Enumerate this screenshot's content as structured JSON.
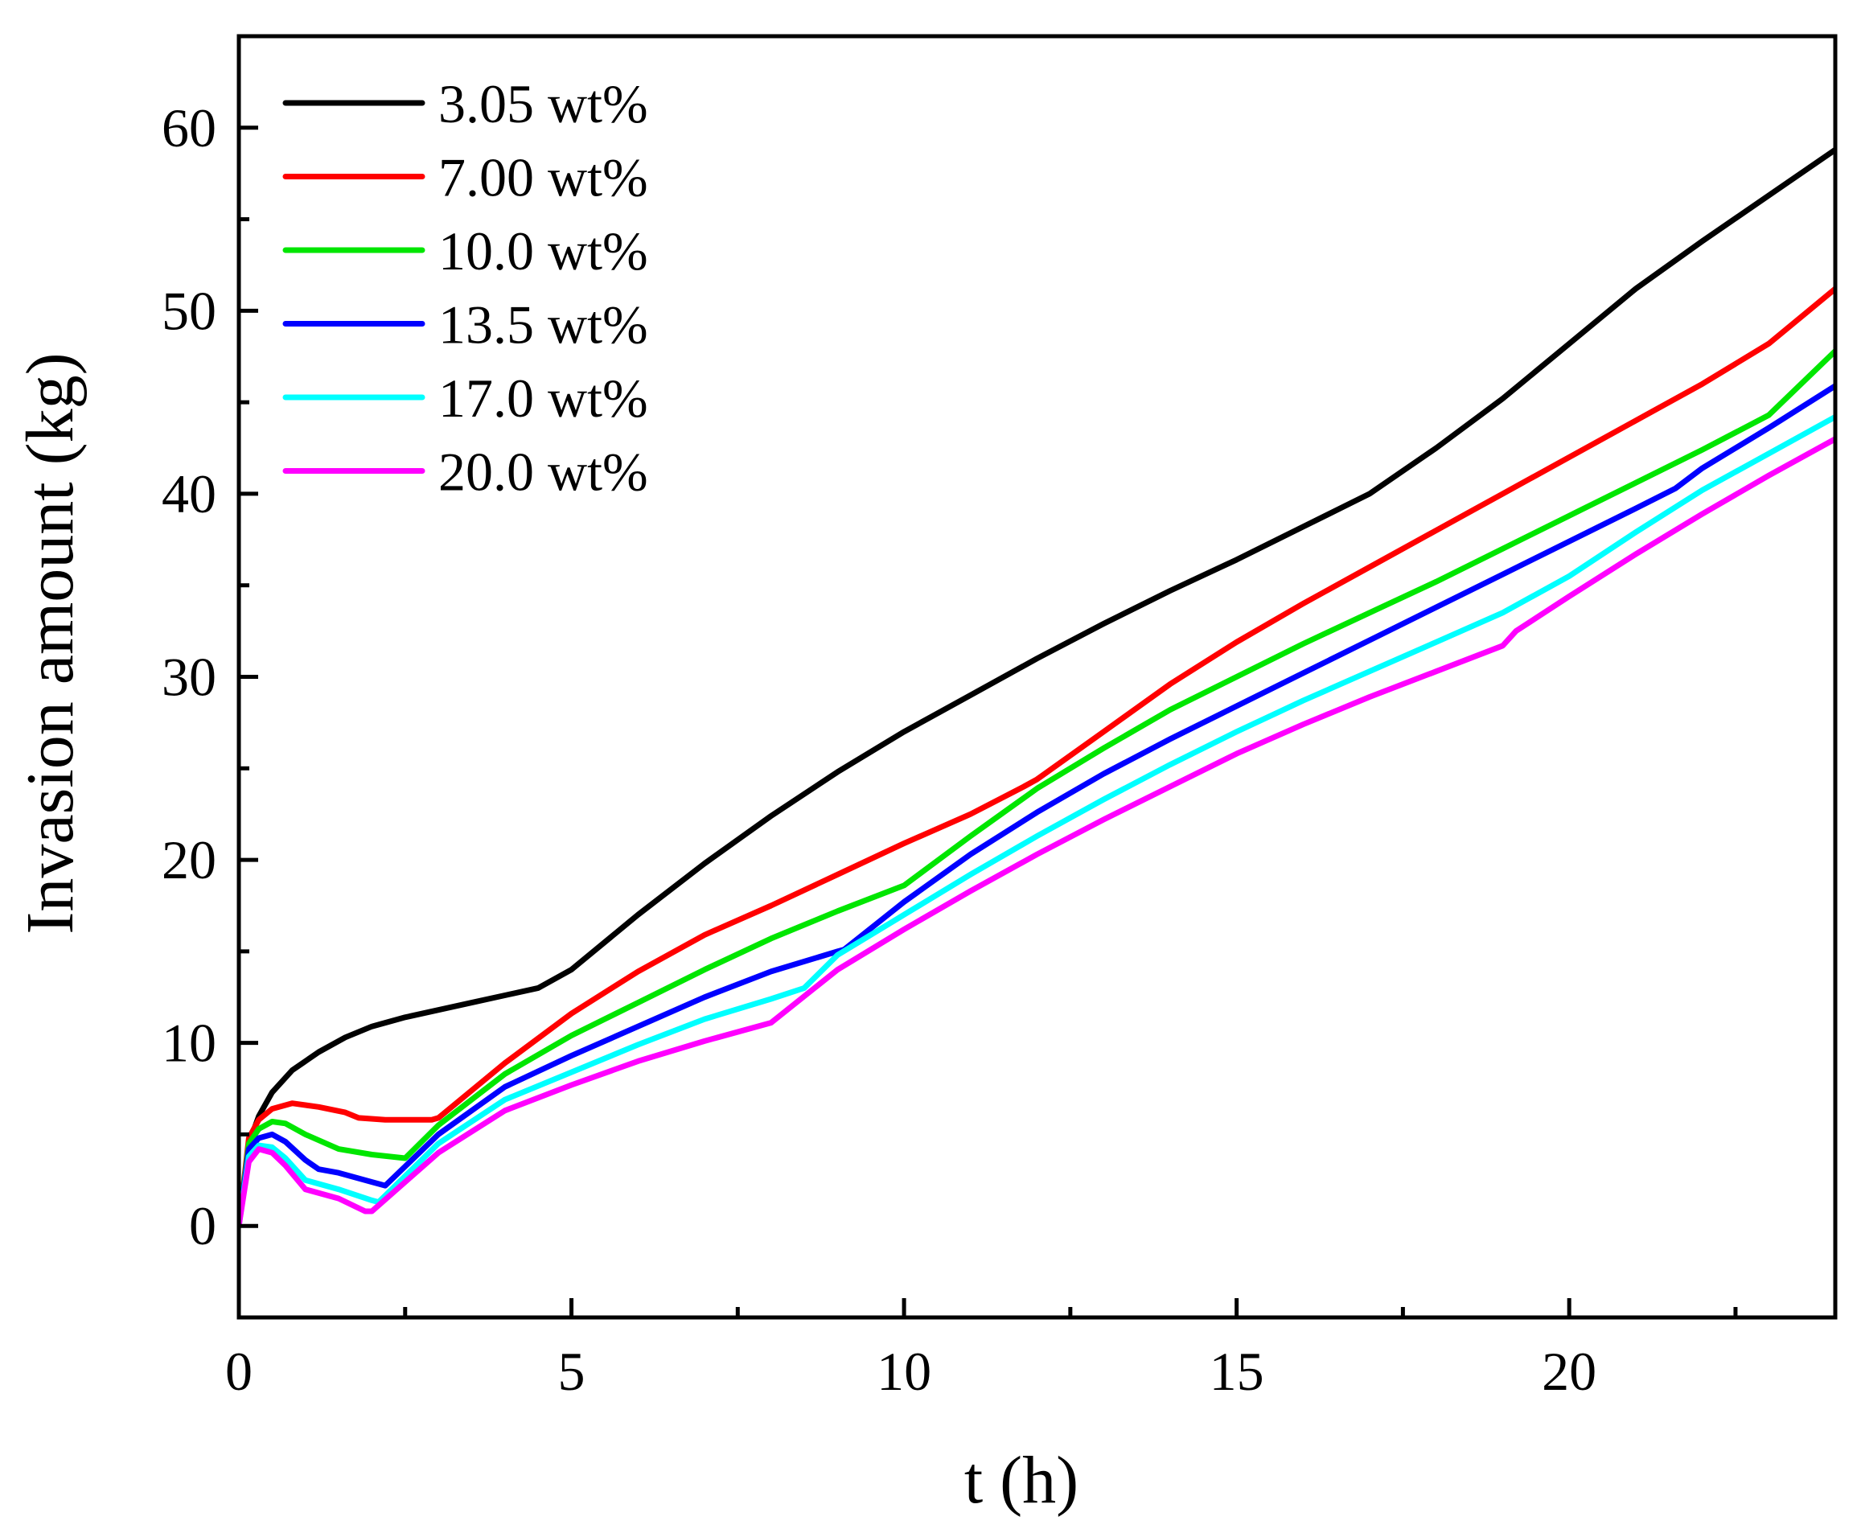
{
  "chart_data": {
    "type": "line",
    "title": "",
    "xlabel": "t (h)",
    "ylabel": "Invasion amount (kg)",
    "xlim": [
      0,
      24
    ],
    "ylim": [
      -5,
      65
    ],
    "xticks": [
      0,
      5,
      10,
      15,
      20
    ],
    "yticks": [
      0,
      10,
      20,
      30,
      40,
      50,
      60
    ],
    "xtick_labels": [
      "0",
      "5",
      "10",
      "15",
      "20"
    ],
    "ytick_labels": [
      "0",
      "10",
      "20",
      "30",
      "40",
      "50",
      "60"
    ],
    "legend_position": "top-left",
    "grid": false,
    "series": [
      {
        "name": "3.05 wt%",
        "color": "#000000",
        "x": [
          0,
          0.15,
          0.3,
          0.5,
          0.8,
          1.2,
          1.6,
          2.0,
          2.5,
          3.0,
          3.5,
          4.0,
          4.5,
          5.0,
          6.0,
          7.0,
          8.0,
          9.0,
          10.0,
          11.0,
          12.0,
          13.0,
          14.0,
          15.0,
          16.0,
          17.0,
          18.0,
          19.0,
          20.0,
          21.0,
          22.0,
          23.0,
          24.0
        ],
        "y": [
          0,
          4.5,
          6.0,
          7.3,
          8.5,
          9.5,
          10.3,
          10.9,
          11.4,
          11.8,
          12.2,
          12.6,
          13.0,
          14.0,
          17.0,
          19.8,
          22.4,
          24.8,
          27.0,
          29.0,
          31.0,
          32.9,
          34.7,
          36.4,
          38.2,
          40.0,
          42.5,
          45.2,
          48.2,
          51.2,
          53.8,
          56.3,
          58.8
        ]
      },
      {
        "name": "7.00 wt%",
        "color": "#ff0000",
        "x": [
          0,
          0.15,
          0.3,
          0.5,
          0.8,
          1.2,
          1.6,
          1.8,
          2.2,
          2.6,
          2.9,
          3.0,
          4.0,
          5.0,
          6.0,
          7.0,
          8.0,
          9.0,
          10.0,
          11.0,
          11.8,
          12.0,
          13.0,
          14.0,
          15.0,
          16.0,
          17.0,
          18.0,
          19.0,
          20.0,
          21.0,
          22.0,
          23.0,
          24.0
        ],
        "y": [
          0,
          4.8,
          5.8,
          6.4,
          6.7,
          6.5,
          6.2,
          5.9,
          5.8,
          5.8,
          5.8,
          5.9,
          8.9,
          11.6,
          13.9,
          15.9,
          17.5,
          19.2,
          20.9,
          22.5,
          24.0,
          24.4,
          27.0,
          29.6,
          31.9,
          34.0,
          36.0,
          38.0,
          40.0,
          42.0,
          44.0,
          46.0,
          48.2,
          51.2
        ]
      },
      {
        "name": "10.0 wt%",
        "color": "#00e600",
        "x": [
          0,
          0.15,
          0.3,
          0.5,
          0.7,
          1.0,
          1.5,
          2.0,
          2.5,
          3.0,
          4.0,
          5.0,
          6.0,
          7.0,
          8.0,
          9.0,
          10.0,
          11.0,
          12.0,
          13.0,
          14.0,
          15.0,
          16.0,
          17.0,
          18.0,
          19.0,
          20.0,
          21.0,
          22.0,
          23.0,
          24.0
        ],
        "y": [
          0,
          4.5,
          5.3,
          5.7,
          5.6,
          5.0,
          4.2,
          3.9,
          3.7,
          5.5,
          8.3,
          10.4,
          12.2,
          14.0,
          15.7,
          17.2,
          18.6,
          21.3,
          23.9,
          26.1,
          28.2,
          30.0,
          31.8,
          33.5,
          35.2,
          37.0,
          38.8,
          40.6,
          42.4,
          44.3,
          47.8
        ]
      },
      {
        "name": "13.5 wt%",
        "color": "#0000ff",
        "x": [
          0,
          0.15,
          0.3,
          0.5,
          0.7,
          1.0,
          1.2,
          1.5,
          2.0,
          2.2,
          3.0,
          4.0,
          5.0,
          6.0,
          7.0,
          8.0,
          9.0,
          9.1,
          10.0,
          11.0,
          12.0,
          13.0,
          14.0,
          15.0,
          16.0,
          17.0,
          18.0,
          19.0,
          20.0,
          21.0,
          21.6,
          22.0,
          23.0,
          24.0
        ],
        "y": [
          0,
          4.2,
          4.8,
          5.0,
          4.6,
          3.6,
          3.1,
          2.9,
          2.4,
          2.2,
          5.0,
          7.6,
          9.3,
          10.9,
          12.5,
          13.9,
          15.0,
          15.1,
          17.7,
          20.3,
          22.6,
          24.7,
          26.6,
          28.4,
          30.2,
          32.0,
          33.8,
          35.6,
          37.4,
          39.2,
          40.3,
          41.4,
          43.6,
          45.9
        ]
      },
      {
        "name": "17.0 wt%",
        "color": "#00ffff",
        "x": [
          0,
          0.15,
          0.3,
          0.5,
          0.7,
          1.0,
          1.5,
          2.0,
          2.1,
          3.0,
          4.0,
          5.0,
          6.0,
          7.0,
          8.0,
          8.5,
          9.0,
          10.0,
          11.0,
          12.0,
          13.0,
          14.0,
          15.0,
          16.0,
          17.0,
          18.0,
          19.0,
          20.0,
          21.0,
          22.0,
          23.0,
          24.0
        ],
        "y": [
          0,
          3.8,
          4.4,
          4.3,
          3.7,
          2.5,
          2.0,
          1.4,
          1.3,
          4.5,
          6.9,
          8.4,
          9.9,
          11.3,
          12.4,
          13.0,
          14.8,
          17.0,
          19.2,
          21.3,
          23.3,
          25.2,
          27.0,
          28.7,
          30.3,
          31.9,
          33.5,
          35.5,
          37.9,
          40.2,
          42.2,
          44.2
        ]
      },
      {
        "name": "20.0 wt%",
        "color": "#ff00ff",
        "x": [
          0,
          0.15,
          0.3,
          0.5,
          0.7,
          1.0,
          1.5,
          1.9,
          2.0,
          3.0,
          4.0,
          5.0,
          6.0,
          7.0,
          8.0,
          9.0,
          10.0,
          11.0,
          12.0,
          13.0,
          14.0,
          15.0,
          16.0,
          17.0,
          18.0,
          19.0,
          19.2,
          20.0,
          21.0,
          22.0,
          23.0,
          24.0
        ],
        "y": [
          0,
          3.5,
          4.2,
          4.0,
          3.3,
          2.0,
          1.5,
          0.8,
          0.8,
          4.0,
          6.3,
          7.7,
          9.0,
          10.1,
          11.1,
          14.0,
          16.2,
          18.3,
          20.3,
          22.2,
          24.0,
          25.8,
          27.4,
          28.9,
          30.3,
          31.7,
          32.5,
          34.4,
          36.7,
          38.9,
          41.0,
          43.0
        ]
      }
    ]
  }
}
